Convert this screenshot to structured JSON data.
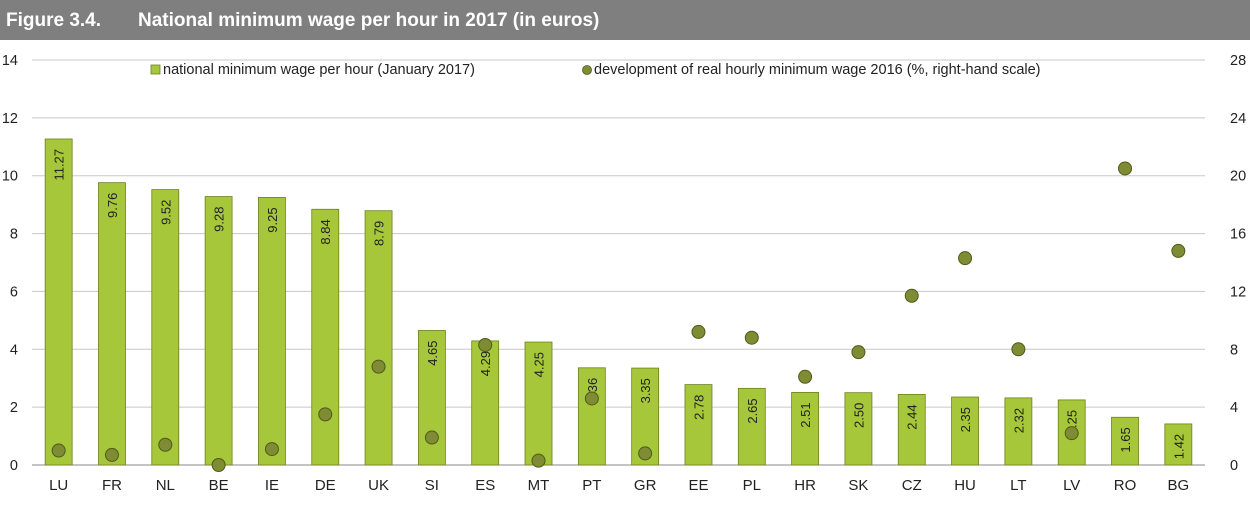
{
  "figure": {
    "number": "Figure 3.4.",
    "title": "National minimum wage per hour in 2017 (in euros)"
  },
  "chart_data": {
    "type": "bar",
    "categories": [
      "LU",
      "FR",
      "NL",
      "BE",
      "IE",
      "DE",
      "UK",
      "SI",
      "ES",
      "MT",
      "PT",
      "GR",
      "EE",
      "PL",
      "HR",
      "SK",
      "CZ",
      "HU",
      "LT",
      "LV",
      "RO",
      "BG"
    ],
    "series": [
      {
        "name": "national minimum wage per hour (January 2017)",
        "type": "bar",
        "axis": "left",
        "color": "#a6c73a",
        "values": [
          11.27,
          9.76,
          9.52,
          9.28,
          9.25,
          8.84,
          8.79,
          4.65,
          4.29,
          4.25,
          3.36,
          3.35,
          2.78,
          2.65,
          2.51,
          2.5,
          2.44,
          2.35,
          2.32,
          2.25,
          1.65,
          1.42
        ],
        "labels": [
          "11.27",
          "9.76",
          "9.52",
          "9.28",
          "9.25",
          "8.84",
          "8.79",
          "4.65",
          "4.29",
          "4.25",
          "3.36",
          "3.35",
          "2.78",
          "2.65",
          "2.51",
          "2.50",
          "2.44",
          "2.35",
          "2.32",
          "2.25",
          "1.65",
          "1.42"
        ]
      },
      {
        "name": "development of real hourly minimum wage 2016 (%, right-hand scale)",
        "type": "scatter",
        "axis": "right",
        "color": "#7f8c34",
        "values": [
          1.0,
          0.7,
          1.4,
          0.0,
          1.1,
          3.5,
          6.8,
          1.9,
          8.3,
          0.3,
          4.6,
          0.8,
          9.2,
          8.8,
          6.1,
          7.8,
          11.7,
          14.3,
          8.0,
          2.2,
          20.5,
          14.8
        ]
      }
    ],
    "y_left": {
      "min": 0,
      "max": 14,
      "ticks": [
        "0",
        "2",
        "4",
        "6",
        "8",
        "10",
        "12",
        "14"
      ]
    },
    "y_right": {
      "min": 0,
      "max": 28,
      "ticks": [
        "0",
        "4",
        "8",
        "12",
        "16",
        "20",
        "24",
        "28"
      ]
    },
    "grid": true,
    "legend": "top"
  }
}
